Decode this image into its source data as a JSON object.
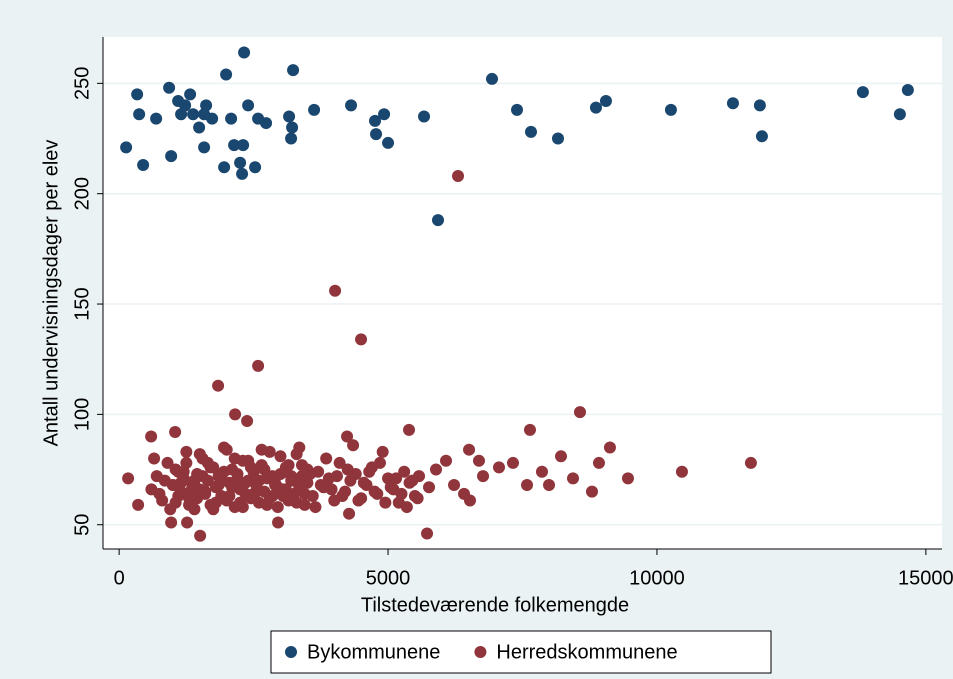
{
  "chart_data": {
    "type": "scatter",
    "xlabel": "Tilstedeværende folkemengde",
    "ylabel": "Antall undervisningsdager per elev",
    "xlim": [
      -300,
      15300
    ],
    "xticks": [
      0,
      5000,
      10000,
      15000
    ],
    "ylim": [
      39,
      271
    ],
    "yticks": [
      50,
      100,
      150,
      200,
      250
    ],
    "grid": true,
    "legend": "bottom",
    "series": [
      {
        "name": "Bykommunene",
        "color": "#1a476f",
        "x": [
          130,
          335,
          372,
          446,
          688,
          929,
          967,
          1097,
          1152,
          1227,
          1320,
          1375,
          1487,
          1580,
          1617,
          1580,
          1729,
          1952,
          1989,
          2082,
          2138,
          2305,
          2249,
          2286,
          2323,
          2398,
          2528,
          2584,
          2732,
          3160,
          3197,
          3216,
          3234,
          3625,
          4312,
          4758,
          4777,
          4926,
          5000,
          5669,
          5929,
          6933,
          7398,
          7658,
          8160,
          8866,
          9052,
          10260,
          11413,
          11914,
          11952,
          13829,
          14517,
          14665
        ],
        "values": [
          221,
          245,
          236,
          213,
          234,
          248,
          217,
          242,
          236,
          240,
          245,
          236,
          230,
          236,
          240,
          221,
          234,
          212,
          254,
          234,
          222,
          222,
          214,
          209,
          264,
          240,
          212,
          234,
          232,
          235,
          225,
          230,
          256,
          238,
          240,
          233,
          227,
          236,
          223,
          235,
          188,
          252,
          238,
          228,
          225,
          239,
          242,
          238,
          241,
          240,
          226,
          246,
          236,
          247
        ]
      },
      {
        "name": "Herredskommunene",
        "color": "#90353b",
        "x": [
          6301,
          4015,
          4498,
          2584,
          1840,
          2156,
          8569,
          2379,
          7639,
          5390,
          4238,
          595,
          1041,
          9126,
          8922,
          10465,
          11747,
          9461,
          8792,
          5725,
          1506,
          4275,
          2955,
          1264,
          967,
          353,
          167,
          7862,
          7993,
          8216,
          8439,
          7584,
          7323,
          7063,
          6766,
          6506,
          6691,
          6413,
          6524,
          6227,
          6078,
          5892,
          5762,
          5576,
          600,
          700,
          800,
          900,
          1000,
          1100,
          1200,
          1300,
          1400,
          1500,
          1600,
          1700,
          1800,
          1900,
          2000,
          2100,
          2200,
          2300,
          2400,
          2500,
          2600,
          2700,
          2800,
          2900,
          3000,
          3100,
          3200,
          3300,
          3400,
          3500,
          3600,
          3700,
          3800,
          3900,
          4000,
          4100,
          4200,
          4300,
          4400,
          4500,
          4600,
          4700,
          4800,
          4900,
          5000,
          5100,
          5200,
          5300,
          5400,
          5500,
          650,
          750,
          850,
          950,
          1050,
          1150,
          1250,
          1350,
          1450,
          1550,
          1650,
          1750,
          1850,
          1950,
          2050,
          2150,
          2250,
          2350,
          2450,
          2550,
          2650,
          2750,
          2850,
          2950,
          3050,
          3150,
          3250,
          3350,
          3450,
          3550,
          3650,
          3750,
          3850,
          3950,
          4050,
          4150,
          4250,
          4350,
          4450,
          4550,
          4650,
          4750,
          4850,
          4950,
          5050,
          5150,
          5250,
          5350,
          5450,
          5550,
          1000,
          1050,
          1100,
          1150,
          1200,
          1250,
          1300,
          1350,
          1400,
          1450,
          1500,
          1550,
          1600,
          1650,
          1700,
          1750,
          1800,
          1850,
          1900,
          1950,
          2000,
          2050,
          2100,
          2150,
          2200,
          2250,
          2300,
          2350,
          2400,
          2450,
          2500,
          2550,
          2600,
          2650,
          2700,
          2750,
          2800,
          2850,
          2900,
          2950,
          3000,
          3050,
          3100,
          3150,
          3200,
          3250,
          3300,
          3350,
          3400,
          3450,
          3500
        ],
        "values": [
          208,
          156,
          134,
          122,
          113,
          100,
          101,
          97,
          93,
          93,
          90,
          90,
          92,
          85,
          78,
          74,
          78,
          71,
          65,
          46,
          45,
          55,
          51,
          51,
          51,
          59,
          71,
          74,
          68,
          81,
          71,
          68,
          78,
          76,
          72,
          84,
          79,
          64,
          61,
          68,
          79,
          75,
          67,
          72,
          66,
          72,
          61,
          78,
          68,
          63,
          74,
          59,
          70,
          82,
          65,
          76,
          60,
          71,
          84,
          67,
          73,
          58,
          79,
          64,
          70,
          75,
          62,
          68,
          81,
          66,
          72,
          60,
          77,
          69,
          63,
          74,
          67,
          71,
          61,
          78,
          65,
          70,
          73,
          62,
          68,
          76,
          64,
          83,
          71,
          66,
          60,
          74,
          69,
          63,
          80,
          64,
          70,
          57,
          75,
          69,
          83,
          66,
          62,
          72,
          78,
          57,
          68,
          74,
          63,
          80,
          60,
          69,
          76,
          65,
          84,
          59,
          72,
          67,
          63,
          77,
          70,
          85,
          64,
          73,
          58,
          68,
          80,
          66,
          72,
          63,
          75,
          86,
          61,
          69,
          74,
          65,
          78,
          60,
          67,
          71,
          64,
          58,
          70,
          62,
          68,
          60,
          74,
          65,
          71,
          78,
          62,
          69,
          57,
          73,
          66,
          80,
          64,
          70,
          59,
          76,
          67,
          72,
          63,
          85,
          61,
          69,
          75,
          58,
          71,
          66,
          79,
          64,
          70,
          62,
          74,
          68,
          60,
          77,
          65,
          71,
          83,
          63,
          69,
          58,
          73,
          66,
          76,
          61,
          70,
          64,
          82,
          67,
          72,
          59,
          75
        ]
      }
    ]
  }
}
